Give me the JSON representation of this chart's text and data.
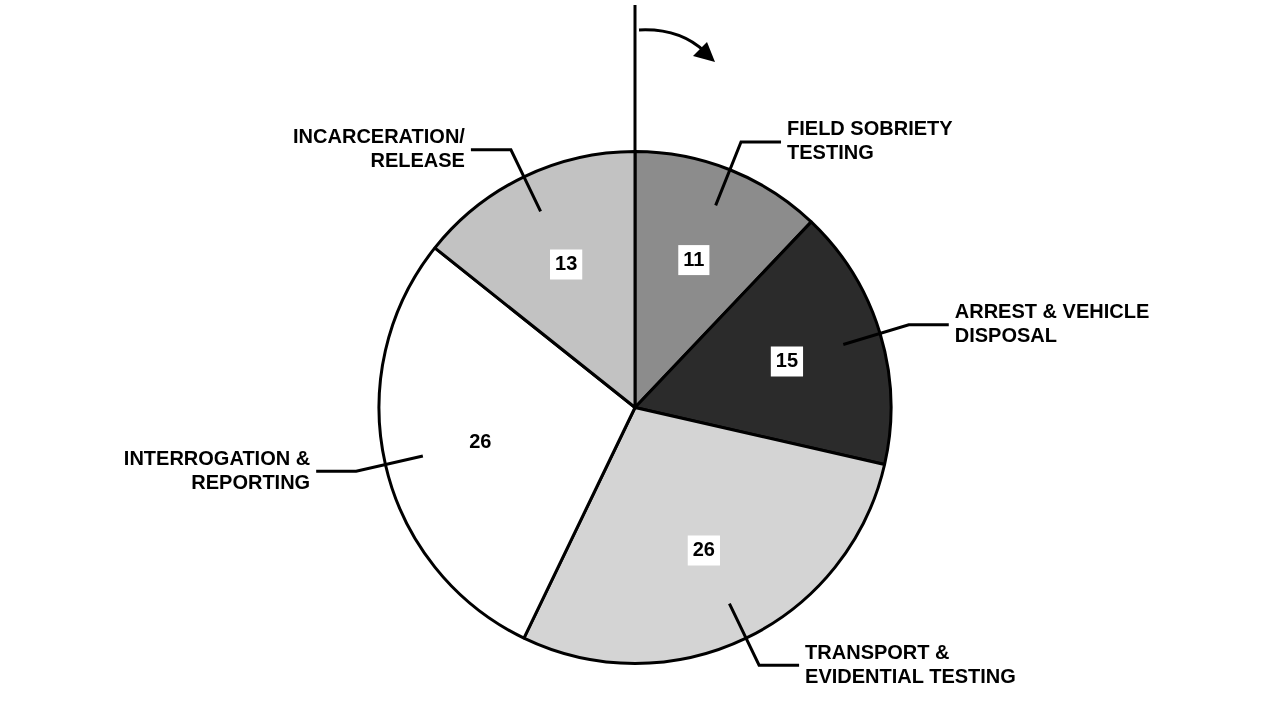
{
  "chart_data": {
    "type": "pie",
    "categories": [
      "FIELD SOBRIETY TESTING",
      "ARREST & VEHICLE DISPOSAL",
      "TRANSPORT & EVIDENTIAL TESTING",
      "INTERROGATION & REPORTING",
      "INCARCERATION/ RELEASE"
    ],
    "values": [
      11,
      15,
      26,
      26,
      13
    ],
    "colors": [
      "#8c8c8c",
      "#2b2b2b",
      "#d4d4d4",
      "#ffffff",
      "#c2c2c2"
    ],
    "data_labels": true,
    "legend": false
  }
}
